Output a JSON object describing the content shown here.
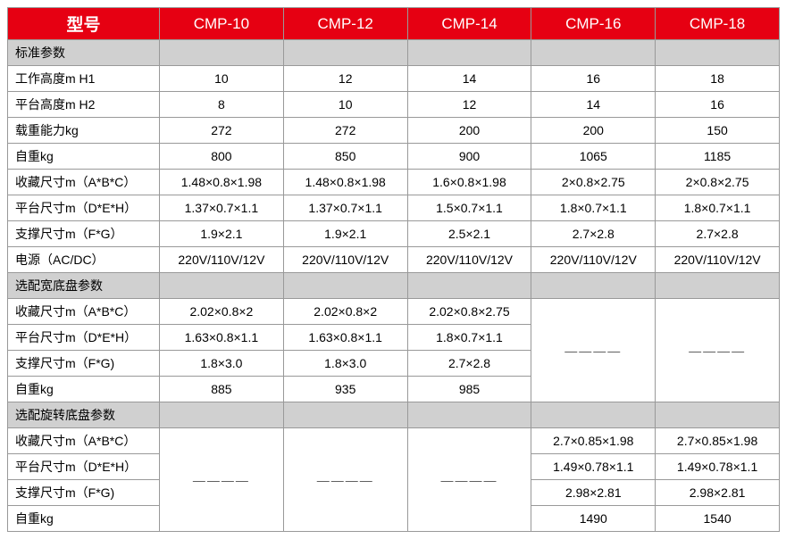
{
  "colors": {
    "header_bg": "#e60012",
    "header_text": "#ffffff",
    "section_bg": "#d0d0d0",
    "border": "#999999",
    "cell_bg": "#ffffff",
    "text": "#000000"
  },
  "dash": "————",
  "header": {
    "title": "型号",
    "models": [
      "CMP-10",
      "CMP-12",
      "CMP-14",
      "CMP-16",
      "CMP-18"
    ]
  },
  "sections": [
    {
      "title": "标准参数",
      "rows": [
        {
          "label": "工作高度m H1",
          "v": [
            "10",
            "12",
            "14",
            "16",
            "18"
          ]
        },
        {
          "label": "平台高度m H2",
          "v": [
            "8",
            "10",
            "12",
            "14",
            "16"
          ]
        },
        {
          "label": "载重能力kg",
          "v": [
            "272",
            "272",
            "200",
            "200",
            "150"
          ]
        },
        {
          "label": "自重kg",
          "v": [
            "800",
            "850",
            "900",
            "1065",
            "1185"
          ]
        },
        {
          "label": "收藏尺寸m（A*B*C）",
          "v": [
            "1.48×0.8×1.98",
            "1.48×0.8×1.98",
            "1.6×0.8×1.98",
            "2×0.8×2.75",
            "2×0.8×2.75"
          ]
        },
        {
          "label": "平台尺寸m（D*E*H）",
          "v": [
            "1.37×0.7×1.1",
            "1.37×0.7×1.1",
            "1.5×0.7×1.1",
            "1.8×0.7×1.1",
            "1.8×0.7×1.1"
          ]
        },
        {
          "label": "支撑尺寸m（F*G）",
          "v": [
            "1.9×2.1",
            "1.9×2.1",
            "2.5×2.1",
            "2.7×2.8",
            "2.7×2.8"
          ]
        },
        {
          "label": "电源（AC/DC）",
          "v": [
            "220V/110V/12V",
            "220V/110V/12V",
            "220V/110V/12V",
            "220V/110V/12V",
            "220V/110V/12V"
          ]
        }
      ]
    },
    {
      "title": "选配宽底盘参数",
      "rows": [
        {
          "label": "收藏尺寸m（A*B*C）",
          "v": [
            "2.02×0.8×2",
            "2.02×0.8×2",
            "2.02×0.8×2.75"
          ]
        },
        {
          "label": "平台尺寸m（D*E*H）",
          "v": [
            "1.63×0.8×1.1",
            "1.63×0.8×1.1",
            "1.8×0.7×1.1"
          ]
        },
        {
          "label": "支撑尺寸m（F*G)",
          "v": [
            "1.8×3.0",
            "1.8×3.0",
            "2.7×2.8"
          ]
        },
        {
          "label": "自重kg",
          "v": [
            "885",
            "935",
            "985"
          ]
        }
      ],
      "merged_dash_cols": 2,
      "merged_dash_position": "right"
    },
    {
      "title": "选配旋转底盘参数",
      "rows": [
        {
          "label": "收藏尺寸m（A*B*C）",
          "v": [
            "2.7×0.85×1.98",
            "2.7×0.85×1.98"
          ]
        },
        {
          "label": "平台尺寸m（D*E*H）",
          "v": [
            "1.49×0.78×1.1",
            "1.49×0.78×1.1"
          ]
        },
        {
          "label": "支撑尺寸m（F*G)",
          "v": [
            "2.98×2.81",
            "2.98×2.81"
          ]
        },
        {
          "label": "自重kg",
          "v": [
            "1490",
            "1540"
          ]
        }
      ],
      "merged_dash_cols": 3,
      "merged_dash_position": "left"
    }
  ]
}
